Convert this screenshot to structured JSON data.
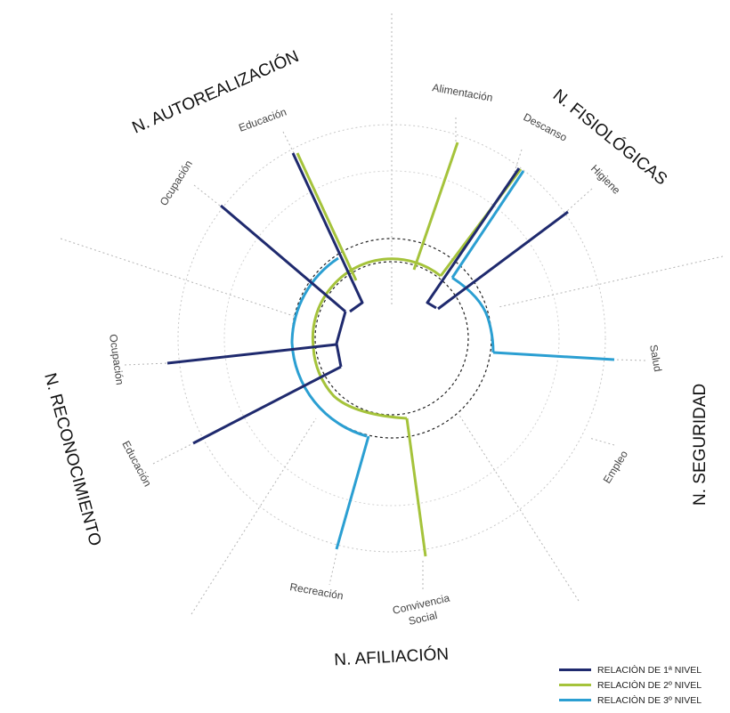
{
  "categories": {
    "fisiologicas": "N. FISIOLÓGICAS",
    "seguridad": "N. SEGURIDAD",
    "afiliacion": "N. AFILIACIÓN",
    "reconocimiento": "N. RECONOCIMIENTO",
    "autorealizacion": "N. AUTOREALIZACIÓN"
  },
  "subcategories": {
    "alimentacion": "Alimentación",
    "descanso": "Descanso",
    "higiene": "Higiene",
    "salud": "Salud",
    "empleo": "Empleo",
    "convivencia_line1": "Convivencia",
    "convivencia_line2": "Social",
    "recreacion": "Recreación",
    "educacion_reconocimiento": "Educación",
    "ocupacion_reconocimiento": "Ocupación",
    "ocupacion_autorealizacion": "Ocupación",
    "educacion_autorealizacion": "Educación"
  },
  "legend": [
    {
      "label": "RELACIÒN DE 1ª NIVEL",
      "color": "#1f2a6e"
    },
    {
      "label": "RELACIÒN DE 2º NIVEL",
      "color": "#a5c33b"
    },
    {
      "label": "RELACIÒN DE 3º NIVEL",
      "color": "#2b9fd2"
    }
  ],
  "colors": {
    "level1": "#1f2a6e",
    "level2": "#a5c33b",
    "level3": "#2b9fd2"
  }
}
